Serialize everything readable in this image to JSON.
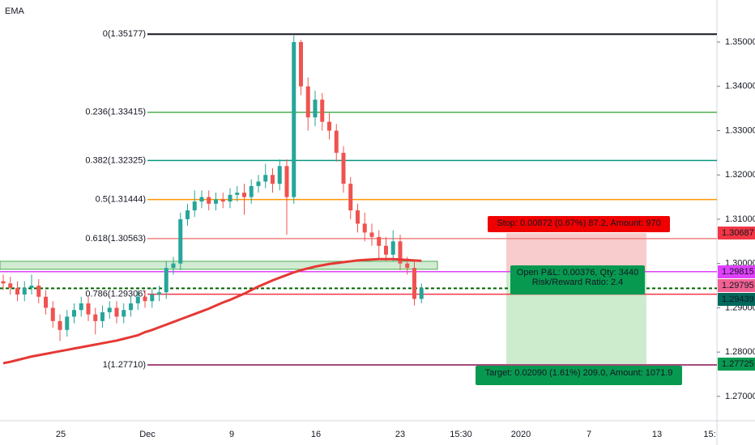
{
  "chart_data": {
    "type": "candlestick",
    "indicator": "EMA",
    "open": [
      1.296,
      1.2955,
      1.2945,
      1.293,
      1.2945,
      1.295,
      1.2925,
      1.29,
      1.287,
      1.285,
      1.288,
      1.2895,
      1.291,
      1.2885,
      1.287,
      1.289,
      1.29,
      1.288,
      1.2895,
      1.291,
      1.2925,
      1.2915,
      1.293,
      1.2935,
      1.299,
      1.3,
      1.31,
      1.312,
      1.314,
      1.315,
      1.3135,
      1.3145,
      1.314,
      1.3155,
      1.316,
      1.315,
      1.3175,
      1.3185,
      1.32,
      1.318,
      1.322,
      1.315,
      1.35,
      1.34,
      1.333,
      1.337,
      1.332,
      1.33,
      1.325,
      1.318,
      1.312,
      1.309,
      1.307,
      1.306,
      1.304,
      1.302,
      1.305,
      1.3,
      1.299,
      1.292
    ],
    "high": [
      1.2975,
      1.297,
      1.296,
      1.296,
      1.2975,
      1.2965,
      1.294,
      1.2915,
      1.2885,
      1.2895,
      1.291,
      1.2925,
      1.2925,
      1.29,
      1.2905,
      1.2915,
      1.2915,
      1.291,
      1.2925,
      1.294,
      1.294,
      1.2945,
      1.295,
      1.3005,
      1.3015,
      1.3115,
      1.3135,
      1.3165,
      1.3165,
      1.3165,
      1.316,
      1.316,
      1.317,
      1.3175,
      1.318,
      1.319,
      1.32,
      1.3225,
      1.3215,
      1.3235,
      1.3235,
      1.3515,
      1.3505,
      1.342,
      1.339,
      1.3385,
      1.334,
      1.3315,
      1.3265,
      1.3195,
      1.3135,
      1.3115,
      1.309,
      1.3075,
      1.306,
      1.3075,
      1.3065,
      1.3015,
      1.3005,
      1.2955
    ],
    "low": [
      1.294,
      1.293,
      1.2915,
      1.2915,
      1.293,
      1.291,
      1.2885,
      1.2855,
      1.2825,
      1.2835,
      1.2865,
      1.288,
      1.287,
      1.284,
      1.2855,
      1.2875,
      1.2865,
      1.2865,
      1.288,
      1.2895,
      1.29,
      1.29,
      1.2915,
      1.292,
      1.2975,
      1.2985,
      1.3085,
      1.3105,
      1.3125,
      1.312,
      1.312,
      1.3125,
      1.3125,
      1.314,
      1.311,
      1.3135,
      1.316,
      1.317,
      1.316,
      1.3165,
      1.3065,
      1.3135,
      1.338,
      1.33,
      1.331,
      1.33,
      1.328,
      1.323,
      1.316,
      1.31,
      1.307,
      1.305,
      1.304,
      1.301,
      1.3005,
      1.3005,
      1.2985,
      1.2975,
      1.2905,
      1.291
    ],
    "close": [
      1.2955,
      1.2945,
      1.293,
      1.2945,
      1.295,
      1.2925,
      1.29,
      1.287,
      1.285,
      1.288,
      1.2895,
      1.291,
      1.2885,
      1.287,
      1.289,
      1.29,
      1.288,
      1.2895,
      1.291,
      1.2925,
      1.2915,
      1.293,
      1.2935,
      1.299,
      1.3,
      1.31,
      1.312,
      1.314,
      1.315,
      1.3135,
      1.3145,
      1.314,
      1.3155,
      1.316,
      1.315,
      1.3175,
      1.3185,
      1.32,
      1.318,
      1.322,
      1.315,
      1.35,
      1.34,
      1.333,
      1.337,
      1.332,
      1.33,
      1.325,
      1.318,
      1.312,
      1.309,
      1.307,
      1.306,
      1.304,
      1.302,
      1.305,
      1.3,
      1.299,
      1.292,
      1.2944
    ],
    "up_color": "#26a69a",
    "down_color": "#ef5350",
    "ema": {
      "color": "#e53935",
      "values": [
        1.2775,
        1.2778,
        1.2782,
        1.2786,
        1.279,
        1.2793,
        1.2796,
        1.2799,
        1.2802,
        1.2805,
        1.2808,
        1.2811,
        1.2814,
        1.2817,
        1.282,
        1.2823,
        1.2826,
        1.283,
        1.2834,
        1.2838,
        1.2845,
        1.285,
        1.2856,
        1.2862,
        1.2868,
        1.2874,
        1.288,
        1.2886,
        1.2892,
        1.2898,
        1.2905,
        1.2912,
        1.2918,
        1.2925,
        1.2932,
        1.294,
        1.2948,
        1.2955,
        1.2962,
        1.2968,
        1.2974,
        1.298,
        1.2985,
        1.2989,
        1.2993,
        1.2996,
        1.2999,
        1.3001,
        1.3003,
        1.3005,
        1.3007,
        1.3008,
        1.3009,
        1.301,
        1.301,
        1.301,
        1.3009,
        1.3008,
        1.3007,
        1.3006
      ]
    },
    "ylim": [
      1.2645,
      1.3595
    ],
    "yticks": [
      {
        "value": 1.27,
        "label": "1.27000"
      },
      {
        "value": 1.28,
        "label": "1.28000"
      },
      {
        "value": 1.29,
        "label": "1.29000"
      },
      {
        "value": 1.3,
        "label": "1.30000"
      },
      {
        "value": 1.31,
        "label": "1.31000"
      },
      {
        "value": 1.32,
        "label": "1.32000"
      },
      {
        "value": 1.33,
        "label": "1.33000"
      },
      {
        "value": 1.34,
        "label": "1.34000"
      },
      {
        "value": 1.35,
        "label": "1.35000"
      }
    ],
    "xticks": [
      "25",
      "Dec",
      "9",
      "16",
      "23",
      "15:30",
      "2020",
      "7",
      "13",
      "15:"
    ],
    "fib_levels": [
      {
        "label": "0(1.35177)",
        "value": 1.35177,
        "color": "#131722"
      },
      {
        "label": "0.236(1.33415)",
        "value": 1.33415,
        "color": "#4caf50"
      },
      {
        "label": "0.382(1.32325)",
        "value": 1.32325,
        "color": "#089981"
      },
      {
        "label": "0.5(1.31444)",
        "value": 1.31444,
        "color": "#ff9800"
      },
      {
        "label": "0.618(1.30563)",
        "value": 1.30563,
        "color": "#f08080"
      },
      {
        "label": "0.786(1.29306)",
        "value": 1.29306,
        "color": "#f23645"
      },
      {
        "label": "1(1.27710)",
        "value": 1.2771,
        "color": "#880e4f"
      }
    ],
    "price_labels": [
      {
        "value": 1.30687,
        "color": "#f23645"
      },
      {
        "value": 1.29815,
        "color": "#e040fb"
      },
      {
        "value": 1.29795,
        "color": "#f06292"
      },
      {
        "value": 1.29439,
        "color": "#00695c"
      },
      {
        "value": 1.27725,
        "color": "#089950"
      }
    ],
    "support_zone": [
      1.2987,
      1.3005
    ],
    "horizontal_line": {
      "value": 1.29815,
      "color": "#e040fb"
    },
    "price_line": {
      "value": 1.29439,
      "color": "#006400"
    },
    "position": {
      "entry": 1.29815,
      "stop": 1.30687,
      "target": 1.27725,
      "stop_label": "Stop: 0.00872 (0.67%) 87.2, Amount: 970",
      "target_label": "Target: 0.02090 (1.61%) 209.0, Amount: 1071.9",
      "pnl_label": "Open P&L: 0.00376, Qty: 3440",
      "ratio_label": "Risk/Reward Ratio: 2.4"
    }
  }
}
